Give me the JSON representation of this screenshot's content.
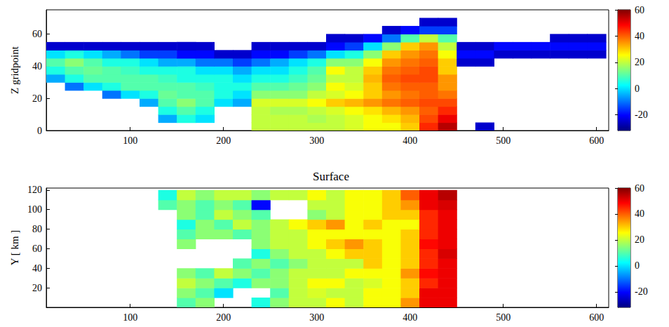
{
  "chart_data": [
    {
      "type": "heatmap",
      "color": "jet",
      "grid": false,
      "ylabel": "Z gridpoint",
      "x": [
        20,
        40,
        60,
        80,
        100,
        120,
        140,
        160,
        180,
        200,
        220,
        240,
        260,
        280,
        300,
        320,
        340,
        360,
        380,
        400,
        420,
        440,
        460,
        480,
        500,
        520,
        540,
        560,
        580,
        600
      ],
      "y": [
        2.5,
        7.5,
        12.5,
        17.5,
        22.5,
        27.5,
        32.5,
        37.5,
        42.5,
        47.5,
        52.5,
        57.5,
        62.5,
        67.5,
        72.5
      ],
      "values": [
        [
          null,
          null,
          null,
          null,
          null,
          null,
          null,
          null,
          null,
          null,
          null,
          20,
          20,
          20,
          20,
          20,
          22,
          25,
          25,
          30,
          45,
          55,
          null,
          -25,
          null,
          null,
          null,
          null,
          null,
          null
        ],
        [
          null,
          null,
          null,
          null,
          null,
          null,
          -5,
          5,
          0,
          null,
          null,
          20,
          20,
          20,
          18,
          20,
          22,
          25,
          28,
          32,
          42,
          50,
          null,
          null,
          null,
          null,
          null,
          null,
          null,
          null
        ],
        [
          null,
          null,
          null,
          null,
          null,
          null,
          5,
          10,
          5,
          null,
          null,
          20,
          18,
          18,
          20,
          22,
          25,
          28,
          32,
          35,
          40,
          45,
          null,
          null,
          null,
          null,
          null,
          null,
          null,
          null
        ],
        [
          null,
          null,
          null,
          null,
          null,
          -5,
          10,
          15,
          10,
          0,
          -5,
          22,
          22,
          22,
          25,
          30,
          32,
          35,
          38,
          40,
          42,
          42,
          null,
          null,
          null,
          null,
          null,
          null,
          null,
          null
        ],
        [
          null,
          null,
          null,
          -10,
          0,
          5,
          12,
          10,
          10,
          5,
          0,
          15,
          15,
          15,
          20,
          22,
          25,
          30,
          35,
          38,
          40,
          38,
          null,
          null,
          null,
          null,
          null,
          null,
          null,
          null
        ],
        [
          null,
          -10,
          0,
          5,
          10,
          10,
          10,
          10,
          8,
          5,
          5,
          10,
          10,
          12,
          15,
          25,
          22,
          30,
          38,
          40,
          40,
          35,
          null,
          null,
          null,
          null,
          null,
          null,
          null,
          null
        ],
        [
          -5,
          5,
          10,
          10,
          10,
          10,
          8,
          5,
          5,
          5,
          0,
          5,
          5,
          8,
          12,
          20,
          20,
          32,
          40,
          42,
          42,
          35,
          null,
          null,
          null,
          null,
          null,
          null,
          null,
          null
        ],
        [
          5,
          10,
          12,
          10,
          8,
          5,
          5,
          5,
          0,
          0,
          -5,
          0,
          0,
          5,
          10,
          25,
          20,
          30,
          38,
          40,
          42,
          30,
          null,
          null,
          null,
          null,
          null,
          null,
          null,
          null
        ],
        [
          10,
          15,
          10,
          5,
          5,
          0,
          -5,
          -5,
          -10,
          -10,
          -15,
          -10,
          -5,
          0,
          5,
          15,
          15,
          25,
          35,
          38,
          40,
          30,
          -25,
          -25,
          null,
          null,
          null,
          null,
          null,
          null
        ],
        [
          0,
          5,
          0,
          -5,
          -10,
          -15,
          -15,
          -20,
          -20,
          -25,
          -25,
          -20,
          -20,
          -15,
          -10,
          0,
          5,
          15,
          30,
          35,
          38,
          25,
          -20,
          -20,
          -25,
          -25,
          -25,
          -25,
          -25,
          -25
        ],
        [
          -25,
          -25,
          -25,
          -25,
          -25,
          -25,
          -25,
          -25,
          -25,
          null,
          null,
          -25,
          -25,
          -25,
          -25,
          -20,
          -15,
          0,
          15,
          30,
          35,
          20,
          -25,
          -25,
          -20,
          -20,
          -20,
          -20,
          -20,
          -20
        ],
        [
          null,
          null,
          null,
          null,
          null,
          null,
          null,
          null,
          null,
          null,
          null,
          null,
          null,
          null,
          null,
          -25,
          -25,
          -20,
          -10,
          10,
          20,
          10,
          null,
          null,
          null,
          null,
          null,
          -25,
          -25,
          -25
        ],
        [
          null,
          null,
          null,
          null,
          null,
          null,
          null,
          null,
          null,
          null,
          null,
          null,
          null,
          null,
          null,
          null,
          null,
          null,
          -25,
          -20,
          -15,
          -15,
          null,
          null,
          null,
          null,
          null,
          null,
          null,
          null
        ],
        [
          null,
          null,
          null,
          null,
          null,
          null,
          null,
          null,
          null,
          null,
          null,
          null,
          null,
          null,
          null,
          null,
          null,
          null,
          null,
          null,
          -25,
          -25,
          null,
          null,
          null,
          null,
          null,
          null,
          null,
          null
        ],
        [
          null,
          null,
          null,
          null,
          null,
          null,
          null,
          null,
          null,
          null,
          null,
          null,
          null,
          null,
          null,
          null,
          null,
          null,
          null,
          null,
          null,
          null,
          null,
          null,
          null,
          null,
          null,
          null,
          null,
          null
        ]
      ],
      "xlim": [
        10,
        613
      ],
      "xticks": [
        100,
        200,
        300,
        400,
        500,
        600
      ],
      "ylim": [
        0,
        75
      ],
      "yticks": [
        0,
        20,
        40,
        60
      ],
      "colorbar": {
        "range": [
          -32,
          60
        ],
        "ticks": [
          -20,
          0,
          20,
          40,
          60
        ]
      }
    },
    {
      "type": "heatmap",
      "color": "jet",
      "grid": false,
      "title": "Surface",
      "ylabel": "Y [ km ]",
      "x": [
        20,
        40,
        60,
        80,
        100,
        120,
        140,
        160,
        180,
        200,
        220,
        240,
        260,
        280,
        300,
        320,
        340,
        360,
        380,
        400,
        420,
        440,
        460,
        480,
        500,
        520,
        540,
        560,
        580,
        600
      ],
      "y": [
        5,
        15,
        25,
        35,
        45,
        55,
        65,
        75,
        85,
        95,
        105,
        115
      ],
      "values": [
        [
          null,
          null,
          null,
          null,
          null,
          null,
          null,
          10,
          15,
          null,
          null,
          5,
          15,
          20,
          20,
          25,
          20,
          25,
          25,
          35,
          50,
          50,
          null,
          null,
          null,
          null,
          null,
          null,
          null,
          null
        ],
        [
          null,
          null,
          null,
          null,
          null,
          null,
          null,
          15,
          10,
          0,
          null,
          null,
          10,
          20,
          22,
          20,
          20,
          25,
          25,
          30,
          50,
          50,
          null,
          null,
          null,
          null,
          null,
          null,
          null,
          null
        ],
        [
          null,
          null,
          null,
          null,
          null,
          null,
          null,
          20,
          15,
          10,
          5,
          15,
          15,
          20,
          25,
          25,
          20,
          22,
          25,
          30,
          45,
          50,
          null,
          null,
          null,
          null,
          null,
          null,
          null,
          null
        ],
        [
          null,
          null,
          null,
          null,
          null,
          null,
          null,
          15,
          10,
          20,
          15,
          10,
          15,
          20,
          20,
          20,
          25,
          25,
          25,
          35,
          48,
          50,
          null,
          null,
          null,
          null,
          null,
          null,
          null,
          null
        ],
        [
          null,
          null,
          null,
          null,
          null,
          null,
          null,
          null,
          null,
          null,
          10,
          15,
          10,
          15,
          20,
          20,
          20,
          30,
          25,
          30,
          45,
          50,
          null,
          null,
          null,
          null,
          null,
          null,
          null,
          null
        ],
        [
          null,
          null,
          null,
          null,
          null,
          null,
          null,
          null,
          null,
          null,
          null,
          5,
          15,
          20,
          20,
          25,
          30,
          30,
          25,
          30,
          45,
          52,
          null,
          null,
          null,
          null,
          null,
          null,
          null,
          null
        ],
        [
          null,
          null,
          null,
          null,
          null,
          null,
          null,
          15,
          null,
          null,
          null,
          15,
          20,
          20,
          25,
          30,
          35,
          30,
          25,
          30,
          48,
          50,
          null,
          null,
          null,
          null,
          null,
          null,
          null,
          null
        ],
        [
          null,
          null,
          null,
          null,
          null,
          null,
          null,
          10,
          15,
          15,
          10,
          15,
          20,
          20,
          25,
          25,
          25,
          25,
          25,
          30,
          45,
          50,
          null,
          null,
          null,
          null,
          null,
          null,
          null,
          null
        ],
        [
          null,
          null,
          null,
          null,
          null,
          null,
          null,
          5,
          15,
          10,
          20,
          15,
          20,
          25,
          30,
          35,
          25,
          30,
          25,
          25,
          45,
          50,
          null,
          null,
          null,
          null,
          null,
          null,
          null,
          null
        ],
        [
          null,
          null,
          null,
          null,
          null,
          null,
          null,
          15,
          10,
          20,
          15,
          10,
          null,
          null,
          15,
          20,
          25,
          25,
          30,
          30,
          45,
          50,
          null,
          null,
          null,
          null,
          null,
          null,
          null,
          null
        ],
        [
          null,
          null,
          null,
          null,
          null,
          null,
          10,
          15,
          10,
          15,
          10,
          -20,
          null,
          null,
          20,
          20,
          25,
          25,
          30,
          35,
          50,
          52,
          null,
          null,
          null,
          null,
          null,
          null,
          null,
          null
        ],
        [
          null,
          null,
          null,
          null,
          null,
          null,
          5,
          20,
          15,
          20,
          20,
          15,
          20,
          20,
          25,
          20,
          25,
          25,
          30,
          40,
          50,
          55,
          null,
          null,
          null,
          null,
          null,
          null,
          null,
          null
        ]
      ],
      "xlim": [
        10,
        613
      ],
      "xticks": [
        100,
        200,
        300,
        400,
        500,
        600
      ],
      "ylim": [
        0,
        122
      ],
      "yticks": [
        20,
        40,
        60,
        80,
        100,
        120
      ],
      "colorbar": {
        "range": [
          -32,
          60
        ],
        "ticks": [
          -20,
          0,
          20,
          40,
          60
        ]
      }
    }
  ]
}
